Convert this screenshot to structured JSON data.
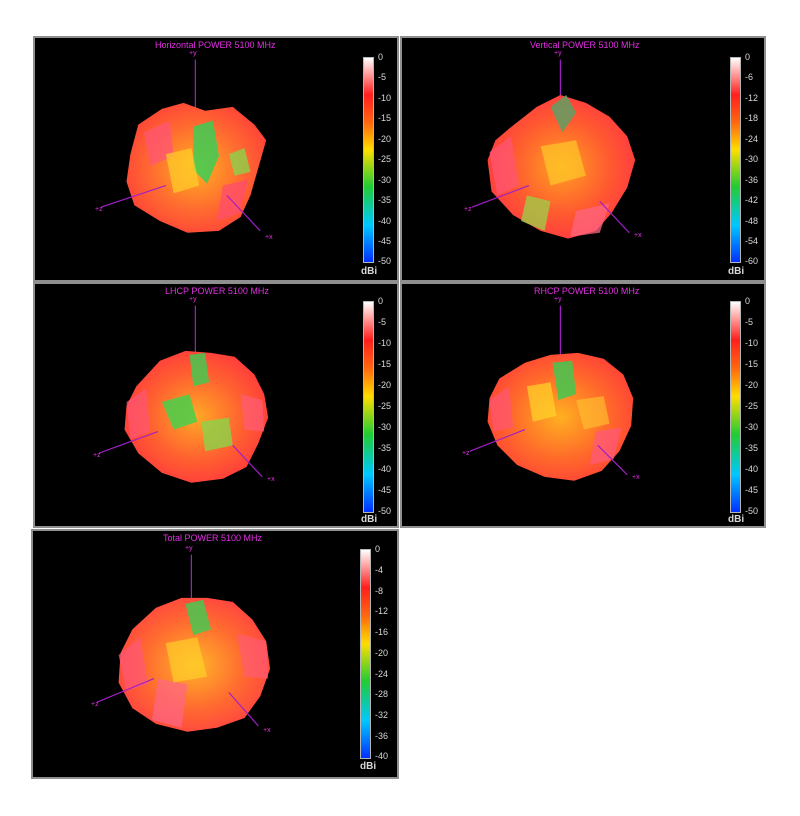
{
  "chart_data": [
    {
      "type": "heatmap",
      "title": "Horizontal POWER 5100  MHz",
      "colorbar": {
        "unit": "dBi",
        "ticks": [
          "0",
          "-5",
          "-10",
          "-15",
          "-20",
          "-25",
          "-30",
          "-35",
          "-40",
          "-45",
          "-50"
        ],
        "range": [
          -50,
          0
        ]
      },
      "axes": [
        "+y",
        "+z",
        "+x"
      ]
    },
    {
      "type": "heatmap",
      "title": "Vertical POWER 5100  MHz",
      "colorbar": {
        "unit": "dBi",
        "ticks": [
          "0",
          "-6",
          "-12",
          "-18",
          "-24",
          "-30",
          "-36",
          "-42",
          "-48",
          "-54",
          "-60"
        ],
        "range": [
          -60,
          0
        ]
      },
      "axes": [
        "+y",
        "+z",
        "+x"
      ]
    },
    {
      "type": "heatmap",
      "title": "LHCP POWER 5100  MHz",
      "colorbar": {
        "unit": "dBi",
        "ticks": [
          "0",
          "-5",
          "-10",
          "-15",
          "-20",
          "-25",
          "-30",
          "-35",
          "-40",
          "-45",
          "-50"
        ],
        "range": [
          -50,
          0
        ]
      },
      "axes": [
        "+y",
        "+z",
        "+x"
      ]
    },
    {
      "type": "heatmap",
      "title": "RHCP POWER 5100  MHz",
      "colorbar": {
        "unit": "dBi",
        "ticks": [
          "0",
          "-5",
          "-10",
          "-15",
          "-20",
          "-25",
          "-30",
          "-35",
          "-40",
          "-45",
          "-50"
        ],
        "range": [
          -50,
          0
        ]
      },
      "axes": [
        "+y",
        "+z",
        "+x"
      ]
    },
    {
      "type": "heatmap",
      "title": "Total POWER 5100  MHz",
      "colorbar": {
        "unit": "dBi",
        "ticks": [
          "0",
          "-4",
          "-8",
          "-12",
          "-16",
          "-20",
          "-24",
          "-28",
          "-32",
          "-36",
          "-40"
        ],
        "range": [
          -40,
          0
        ]
      },
      "axes": [
        "+y",
        "+z",
        "+x"
      ]
    }
  ],
  "colors": {
    "title": "#e22fe2",
    "axis": "#a020c8",
    "background": "#000000",
    "scale": [
      "#ffffff",
      "#ff1e1e",
      "#ffdd00",
      "#22cc33",
      "#00c8ff",
      "#0030ff"
    ]
  }
}
